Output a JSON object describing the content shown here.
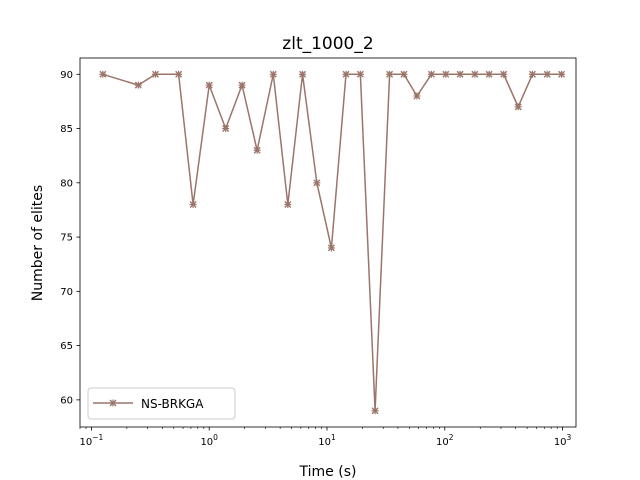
{
  "chart_data": {
    "type": "line",
    "title": "zlt_1000_2",
    "xlabel": "Time (s)",
    "ylabel": "Number of elites",
    "xscale": "log",
    "xlim": [
      0.08,
      1300
    ],
    "ylim": [
      57.5,
      91.5
    ],
    "xticks": [
      {
        "value": 0.1,
        "base": "10",
        "exp": "−1"
      },
      {
        "value": 1,
        "base": "10",
        "exp": "0"
      },
      {
        "value": 10,
        "base": "10",
        "exp": "1"
      },
      {
        "value": 100,
        "base": "10",
        "exp": "2"
      },
      {
        "value": 1000,
        "base": "10",
        "exp": "3"
      }
    ],
    "yticks": [
      60,
      65,
      70,
      75,
      80,
      85,
      90
    ],
    "legend_position": "lower-left",
    "grid": false,
    "series": [
      {
        "name": "NS-BRKGA",
        "color": "#9b7569",
        "marker": "x",
        "x": [
          0.125,
          0.25,
          0.35,
          0.55,
          0.73,
          1.0,
          1.38,
          1.9,
          2.55,
          3.5,
          4.65,
          6.2,
          8.2,
          10.9,
          14.5,
          19.2,
          25.6,
          34,
          45,
          58,
          77,
          102,
          135,
          180,
          238,
          316,
          420,
          555,
          740,
          980
        ],
        "y": [
          90,
          89,
          90,
          90,
          78,
          89,
          85,
          89,
          83,
          90,
          78,
          90,
          80,
          74,
          90,
          90,
          59,
          90,
          90,
          88,
          90,
          90,
          90,
          90,
          90,
          90,
          87,
          90,
          90,
          90
        ]
      }
    ]
  }
}
